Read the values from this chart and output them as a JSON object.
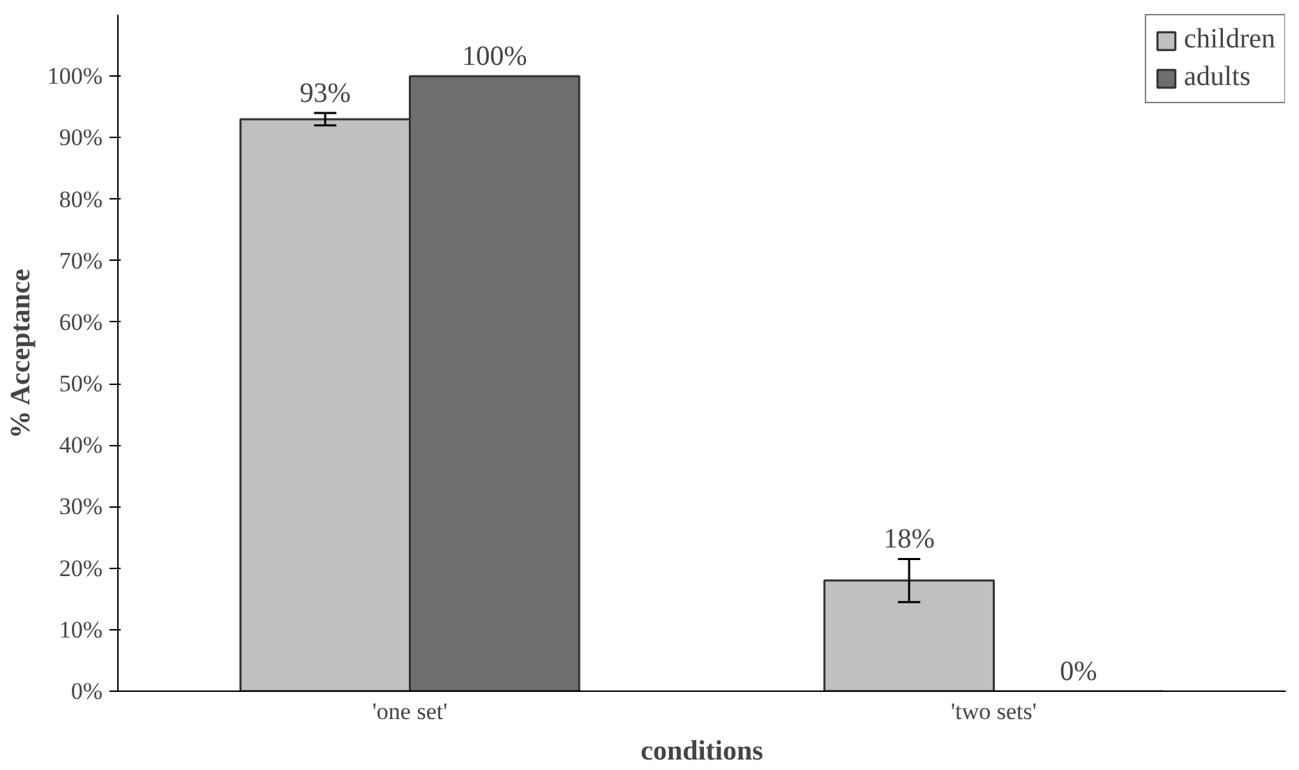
{
  "chart_data": {
    "type": "bar",
    "xlabel": "conditions",
    "ylabel": "% Acceptance",
    "categories": [
      "'one set'",
      "'two sets'"
    ],
    "series": [
      {
        "name": "children",
        "color": "#c0c0c0",
        "values": [
          93,
          18
        ],
        "errors": [
          1,
          3.5
        ],
        "value_labels": [
          "93%",
          "18%"
        ]
      },
      {
        "name": "adults",
        "color": "#6e6e6e",
        "values": [
          100,
          0
        ],
        "errors": [
          null,
          null
        ],
        "value_labels": [
          "100%",
          "0%"
        ]
      }
    ],
    "ylim": [
      0,
      100
    ],
    "yticks": [
      {
        "value": 0,
        "label": "0%"
      },
      {
        "value": 10,
        "label": "10%"
      },
      {
        "value": 20,
        "label": "20%"
      },
      {
        "value": 30,
        "label": "30%"
      },
      {
        "value": 40,
        "label": "40%"
      },
      {
        "value": 50,
        "label": "50%"
      },
      {
        "value": 60,
        "label": "60%"
      },
      {
        "value": 70,
        "label": "70%"
      },
      {
        "value": 80,
        "label": "80%"
      },
      {
        "value": 90,
        "label": "90%"
      },
      {
        "value": 100,
        "label": "100%"
      }
    ],
    "grid": false,
    "legend": "top right"
  }
}
